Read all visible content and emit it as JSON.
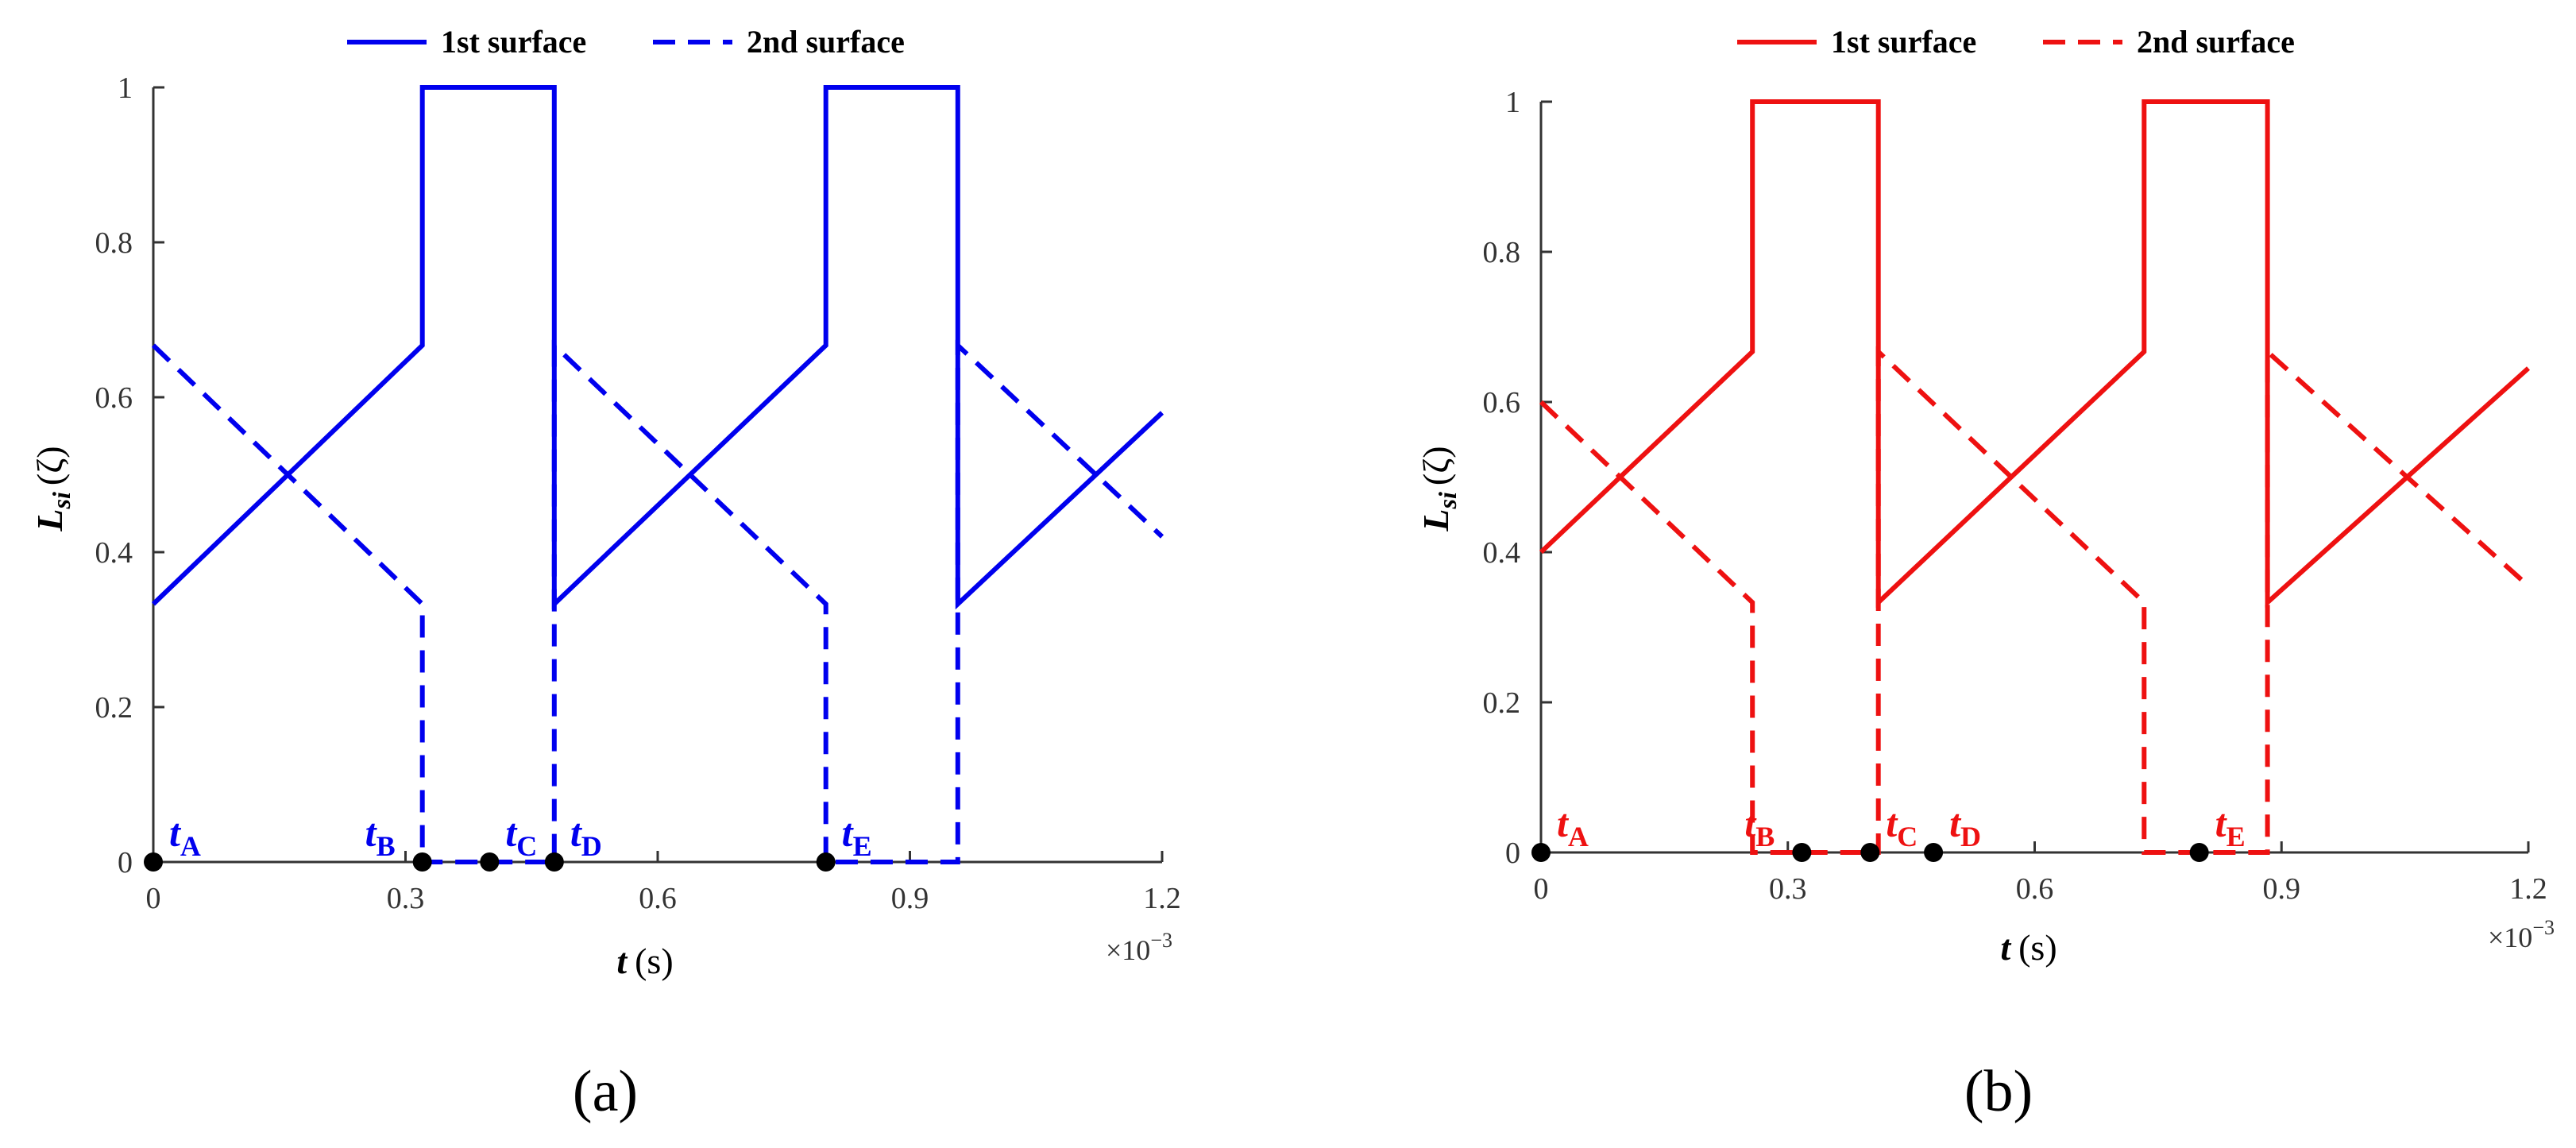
{
  "chart_data": [
    {
      "type": "line",
      "panel_label": "(a)",
      "color": "#0000ee",
      "xlabel_var": "t",
      "xlabel_unit": "(s)",
      "ylabel_var": "L",
      "ylabel_sub": "si",
      "ylabel_arg": "(ζ)",
      "x_multiplier": "×10",
      "x_multiplier_exp": "−3",
      "xlim": [
        0,
        1.2
      ],
      "ylim": [
        0,
        1
      ],
      "x_ticks": [
        "0",
        "0.3",
        "0.6",
        "0.9",
        "1.2"
      ],
      "x_tick_values": [
        0,
        0.3,
        0.6,
        0.9,
        1.2
      ],
      "y_ticks": [
        "0",
        "0.2",
        "0.4",
        "0.6",
        "0.8",
        "1"
      ],
      "y_tick_values": [
        0,
        0.2,
        0.4,
        0.6,
        0.8,
        1
      ],
      "legend": {
        "position": "top",
        "items": [
          "1st surface",
          "2nd surface"
        ]
      },
      "series": [
        {
          "name": "1st surface",
          "style": "solid",
          "x": [
            0,
            0.32,
            0.32,
            0.477,
            0.477,
            0.8,
            0.8,
            0.957,
            0.957,
            1.2
          ],
          "y": [
            0.333,
            0.667,
            1,
            1,
            0.333,
            0.667,
            1,
            1,
            0.333,
            0.58
          ]
        },
        {
          "name": "2nd surface",
          "style": "dashed",
          "x": [
            0,
            0.32,
            0.32,
            0.477,
            0.477,
            0.8,
            0.8,
            0.957,
            0.957,
            1.2
          ],
          "y": [
            0.667,
            0.333,
            0,
            0,
            0.667,
            0.333,
            0,
            0,
            0.667,
            0.42
          ]
        }
      ],
      "markers": [
        {
          "letter": "t",
          "sub": "A",
          "x": 0
        },
        {
          "letter": "t",
          "sub": "B",
          "x": 0.32
        },
        {
          "letter": "t",
          "sub": "C",
          "x": 0.4
        },
        {
          "letter": "t",
          "sub": "D",
          "x": 0.477
        },
        {
          "letter": "t",
          "sub": "E",
          "x": 0.8
        }
      ]
    },
    {
      "type": "line",
      "panel_label": "(b)",
      "color": "#ee1111",
      "xlabel_var": "t",
      "xlabel_unit": "(s)",
      "ylabel_var": "L",
      "ylabel_sub": "si",
      "ylabel_arg": "(ζ)",
      "x_multiplier": "×10",
      "x_multiplier_exp": "−3",
      "xlim": [
        0,
        1.2
      ],
      "ylim": [
        0,
        1
      ],
      "x_ticks": [
        "0",
        "0.3",
        "0.6",
        "0.9",
        "1.2"
      ],
      "x_tick_values": [
        0,
        0.3,
        0.6,
        0.9,
        1.2
      ],
      "y_ticks": [
        "0",
        "0.2",
        "0.4",
        "0.6",
        "0.8",
        "1"
      ],
      "y_tick_values": [
        0,
        0.2,
        0.4,
        0.6,
        0.8,
        1
      ],
      "legend": {
        "position": "top",
        "items": [
          "1st surface",
          "2nd surface"
        ]
      },
      "series": [
        {
          "name": "1st surface",
          "style": "solid",
          "x": [
            0,
            0.257,
            0.257,
            0.41,
            0.41,
            0.733,
            0.733,
            0.883,
            0.883,
            1.2
          ],
          "y": [
            0.4,
            0.667,
            1,
            1,
            0.333,
            0.667,
            1,
            1,
            0.333,
            0.645
          ]
        },
        {
          "name": "2nd surface",
          "style": "dashed",
          "x": [
            0,
            0.257,
            0.257,
            0.41,
            0.41,
            0.733,
            0.733,
            0.883,
            0.883,
            1.2
          ],
          "y": [
            0.6,
            0.333,
            0,
            0,
            0.667,
            0.333,
            0,
            0,
            0.667,
            0.355
          ]
        }
      ],
      "markers": [
        {
          "letter": "t",
          "sub": "A",
          "x": 0
        },
        {
          "letter": "t",
          "sub": "B",
          "x": 0.317
        },
        {
          "letter": "t",
          "sub": "C",
          "x": 0.4
        },
        {
          "letter": "t",
          "sub": "D",
          "x": 0.477
        },
        {
          "letter": "t",
          "sub": "E",
          "x": 0.8
        }
      ]
    }
  ]
}
